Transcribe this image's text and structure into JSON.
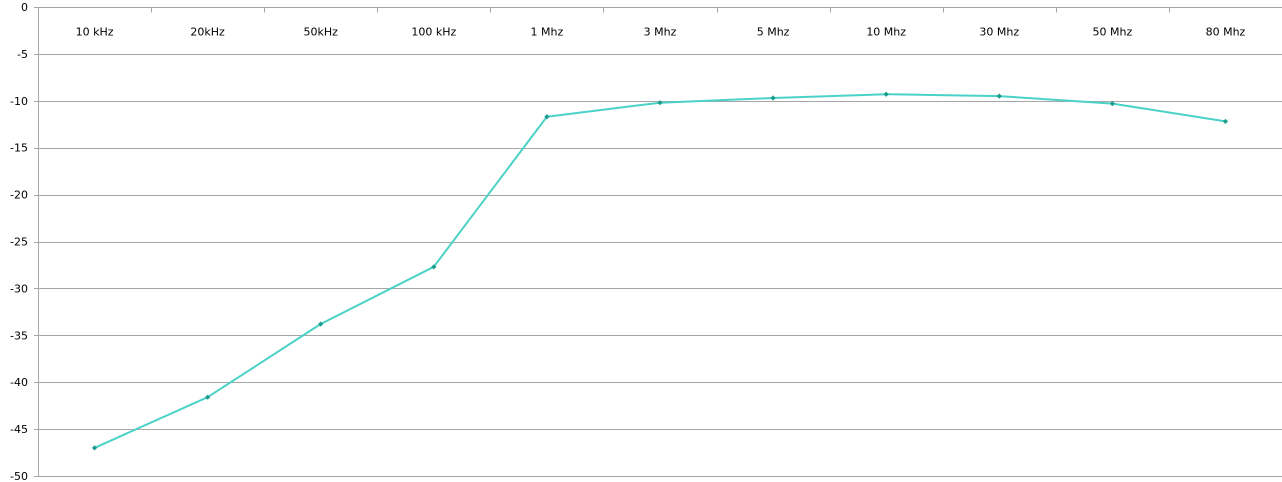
{
  "chart_data": {
    "type": "line",
    "title": "",
    "xlabel": "",
    "ylabel": "",
    "categories": [
      "10 kHz",
      "20kHz",
      "50kHz",
      "100 kHz",
      "1 Mhz",
      "3 Mhz",
      "5 Mhz",
      "10 Mhz",
      "30 Mhz",
      "50 Mhz",
      "80 Mhz"
    ],
    "series": [
      {
        "values": [
          -47.0,
          -41.6,
          -33.8,
          -27.7,
          -11.7,
          -10.2,
          -9.7,
          -9.3,
          -9.5,
          -10.3,
          -12.2
        ]
      }
    ],
    "ylim": [
      -50,
      0
    ],
    "yticks": [
      0,
      -5,
      -10,
      -15,
      -20,
      -25,
      -30,
      -35,
      -40,
      -45,
      -50
    ],
    "ytick_labels": [
      "0",
      "-5",
      "-10",
      "-15",
      "-20",
      "-25",
      "-30",
      "-35",
      "-40",
      "-45",
      "-50"
    ],
    "x_axis_position": "top",
    "grid": true,
    "legend": false,
    "line_color": "#4bd2c8",
    "marker_color": "#1a9c8c",
    "grid_color": "#a6a6a6",
    "axis_color": "#a6a6a6"
  }
}
